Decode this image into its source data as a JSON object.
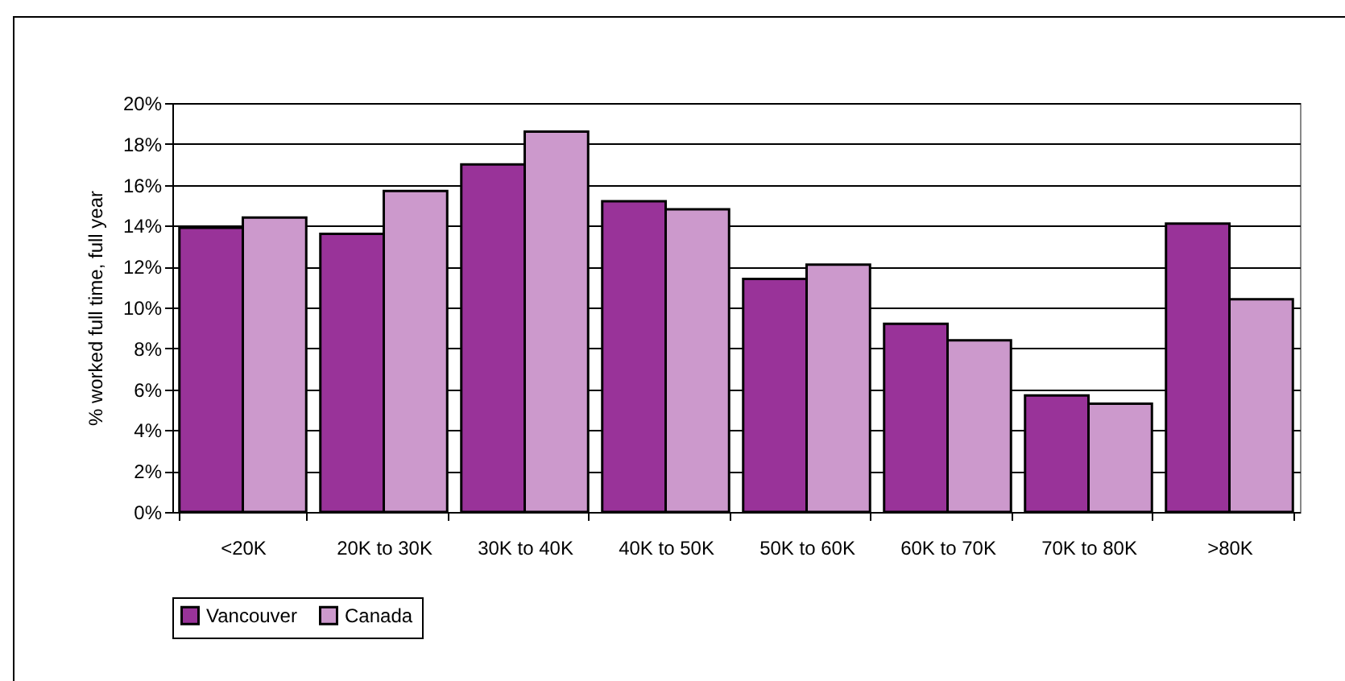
{
  "chart_data": {
    "type": "bar",
    "ylabel": "% worked full time, full year",
    "categories": [
      "<20K",
      "20K to 30K",
      "30K to 40K",
      "40K to 50K",
      "50K to 60K",
      "60K to 70K",
      "70K to 80K",
      ">80K"
    ],
    "series": [
      {
        "name": "Vancouver",
        "color": "#993399",
        "values": [
          13.9,
          13.6,
          17.0,
          15.2,
          11.4,
          9.2,
          5.7,
          14.1
        ]
      },
      {
        "name": "Canada",
        "color": "#cc99cc",
        "values": [
          14.4,
          15.7,
          18.6,
          14.8,
          12.1,
          8.4,
          5.3,
          10.4
        ]
      }
    ],
    "ylim": [
      0,
      20
    ],
    "yticks": [
      {
        "value": 0,
        "label": "0%"
      },
      {
        "value": 2,
        "label": "2%"
      },
      {
        "value": 4,
        "label": "4%"
      },
      {
        "value": 6,
        "label": "6%"
      },
      {
        "value": 8,
        "label": "8%"
      },
      {
        "value": 10,
        "label": "10%"
      },
      {
        "value": 12,
        "label": "12%"
      },
      {
        "value": 14,
        "label": "14%"
      },
      {
        "value": 16,
        "label": "16%"
      },
      {
        "value": 18,
        "label": "18%"
      },
      {
        "value": 20,
        "label": "20%"
      }
    ],
    "grid": "y",
    "legend": "bottom"
  }
}
